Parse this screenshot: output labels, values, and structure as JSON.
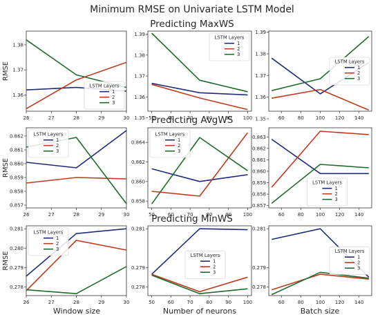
{
  "figure": {
    "title": "Minimum RMSE on Univariate LSTM Model",
    "row_titles": [
      "Predicting MaxWS",
      "Predicting AvgWS",
      "Predicting MinWS"
    ],
    "column_xlabels": [
      "Window size",
      "Number of neurons",
      "Batch size"
    ],
    "row_ylabel": "RMSE",
    "legend_title": "LSTM Layers",
    "series_names": [
      "1",
      "2",
      "3"
    ],
    "colors": [
      "#1f2a7a",
      "#c0391b",
      "#1d6b2b"
    ]
  },
  "chart_data": [
    {
      "type": "line",
      "row": 0,
      "col": 0,
      "x": [
        26,
        28,
        30
      ],
      "xticks": [
        "26",
        "27",
        "28",
        "29",
        "30"
      ],
      "xlim": [
        26,
        30
      ],
      "yticks": [
        "1.36",
        "1.37",
        "1.38"
      ],
      "ylim": [
        1.3535,
        1.3855
      ],
      "legend": "lower-right",
      "ylabel": "RMSE",
      "series": [
        {
          "name": "1",
          "values": [
            1.362,
            1.363,
            1.3615
          ]
        },
        {
          "name": "2",
          "values": [
            1.3545,
            1.366,
            1.373
          ]
        },
        {
          "name": "3",
          "values": [
            1.382,
            1.368,
            1.363
          ]
        }
      ]
    },
    {
      "type": "line",
      "row": 0,
      "col": 1,
      "x": [
        50,
        75,
        100
      ],
      "xticks": [
        "50",
        "60",
        "70",
        "80",
        "90",
        "100"
      ],
      "xlim": [
        48,
        102
      ],
      "yticks": [
        "1.35",
        "1.36",
        "1.37",
        "1.38",
        "1.39"
      ],
      "ylim": [
        1.3532,
        1.3915
      ],
      "legend": "top-right",
      "series": [
        {
          "name": "1",
          "values": [
            1.3665,
            1.362,
            1.361
          ]
        },
        {
          "name": "2",
          "values": [
            1.366,
            1.3595,
            1.354
          ]
        },
        {
          "name": "3",
          "values": [
            1.3905,
            1.368,
            1.3625
          ]
        }
      ]
    },
    {
      "type": "line",
      "row": 0,
      "col": 2,
      "x": [
        50,
        100,
        150
      ],
      "xticks": [
        "60",
        "80",
        "100",
        "120",
        "140"
      ],
      "xlim": [
        47,
        153
      ],
      "yticks": [
        "1.35",
        "1.36",
        "1.37",
        "1.38",
        "1.39"
      ],
      "ylim": [
        1.3535,
        1.3905
      ],
      "legend": "center-right",
      "series": [
        {
          "name": "1",
          "values": [
            1.378,
            1.3615,
            1.376
          ]
        },
        {
          "name": "2",
          "values": [
            1.3595,
            1.3635,
            1.354
          ]
        },
        {
          "name": "3",
          "values": [
            1.363,
            1.3685,
            1.388
          ]
        }
      ]
    },
    {
      "type": "line",
      "row": 1,
      "col": 0,
      "x": [
        26,
        28,
        30
      ],
      "xticks": [
        "26",
        "27",
        "28",
        "29",
        "30"
      ],
      "xlim": [
        26,
        30
      ],
      "yticks": [
        "0.857",
        "0.858",
        "0.859",
        "0.860",
        "0.861",
        "0.862"
      ],
      "ylim": [
        0.8568,
        0.8626
      ],
      "legend": "top-left",
      "ylabel": "RMSE",
      "series": [
        {
          "name": "1",
          "values": [
            0.8601,
            0.8597,
            0.8624
          ]
        },
        {
          "name": "2",
          "values": [
            0.8586,
            0.859,
            0.8589
          ]
        },
        {
          "name": "3",
          "values": [
            0.8612,
            0.8619,
            0.8571
          ]
        }
      ]
    },
    {
      "type": "line",
      "row": 1,
      "col": 1,
      "x": [
        50,
        75,
        100
      ],
      "xticks": [
        "50",
        "60",
        "70",
        "80",
        "90",
        "100"
      ],
      "xlim": [
        48,
        102
      ],
      "yticks": [
        "0.858",
        "0.860",
        "0.862",
        "0.864"
      ],
      "ylim": [
        0.8573,
        0.8655
      ],
      "legend": "top-left",
      "series": [
        {
          "name": "1",
          "values": [
            0.8613,
            0.86,
            0.8607
          ]
        },
        {
          "name": "2",
          "values": [
            0.859,
            0.8585,
            0.865
          ]
        },
        {
          "name": "3",
          "values": [
            0.8577,
            0.8645,
            0.8611
          ]
        }
      ]
    },
    {
      "type": "line",
      "row": 1,
      "col": 2,
      "x": [
        50,
        100,
        150
      ],
      "xticks": [
        "60",
        "80",
        "100",
        "120",
        "140"
      ],
      "xlim": [
        47,
        153
      ],
      "yticks": [
        "0.857",
        "0.858",
        "0.859",
        "0.860",
        "0.861",
        "0.862",
        "0.863"
      ],
      "ylim": [
        0.8568,
        0.8638
      ],
      "legend": "lower-center",
      "series": [
        {
          "name": "1",
          "values": [
            0.8628,
            0.8598,
            0.8598
          ]
        },
        {
          "name": "2",
          "values": [
            0.8586,
            0.8635,
            0.8632
          ]
        },
        {
          "name": "3",
          "values": [
            0.8572,
            0.8606,
            0.8603
          ]
        }
      ]
    },
    {
      "type": "line",
      "row": 2,
      "col": 0,
      "x": [
        26,
        28,
        30
      ],
      "xticks": [
        "26",
        "27",
        "28",
        "29",
        "30"
      ],
      "xlim": [
        26,
        30
      ],
      "yticks": [
        "0.278",
        "0.279",
        "0.280",
        "0.281"
      ],
      "ylim": [
        0.27755,
        0.28115
      ],
      "legend": "top-left",
      "ylabel": "RMSE",
      "series": [
        {
          "name": "1",
          "values": [
            0.27855,
            0.28075,
            0.281
          ]
        },
        {
          "name": "2",
          "values": [
            0.2778,
            0.2804,
            0.2799
          ]
        },
        {
          "name": "3",
          "values": [
            0.27785,
            0.27765,
            0.27905
          ]
        }
      ]
    },
    {
      "type": "line",
      "row": 2,
      "col": 1,
      "x": [
        50,
        75,
        100
      ],
      "xticks": [
        "50",
        "60",
        "70",
        "80",
        "90",
        "100"
      ],
      "xlim": [
        48,
        102
      ],
      "yticks": [
        "0.278",
        "0.279",
        "0.281"
      ],
      "ylim": [
        0.27755,
        0.28115
      ],
      "legend": "center",
      "series": [
        {
          "name": "1",
          "values": [
            0.27865,
            0.281,
            0.28095
          ]
        },
        {
          "name": "2",
          "values": [
            0.27865,
            0.27775,
            0.2785
          ]
        },
        {
          "name": "3",
          "values": [
            0.2786,
            0.27765,
            0.2779
          ]
        }
      ]
    },
    {
      "type": "line",
      "row": 2,
      "col": 2,
      "x": [
        50,
        100,
        150
      ],
      "xticks": [
        "60",
        "80",
        "100",
        "120",
        "140"
      ],
      "xlim": [
        47,
        153
      ],
      "yticks": [
        "0.278",
        "0.279",
        "0.281"
      ],
      "ylim": [
        0.27755,
        0.28115
      ],
      "legend": "center-right",
      "series": [
        {
          "name": "1",
          "values": [
            0.28045,
            0.281,
            0.2785
          ]
        },
        {
          "name": "2",
          "values": [
            0.27785,
            0.27865,
            0.2784
          ]
        },
        {
          "name": "3",
          "values": [
            0.2776,
            0.27875,
            0.27845
          ]
        }
      ]
    }
  ]
}
